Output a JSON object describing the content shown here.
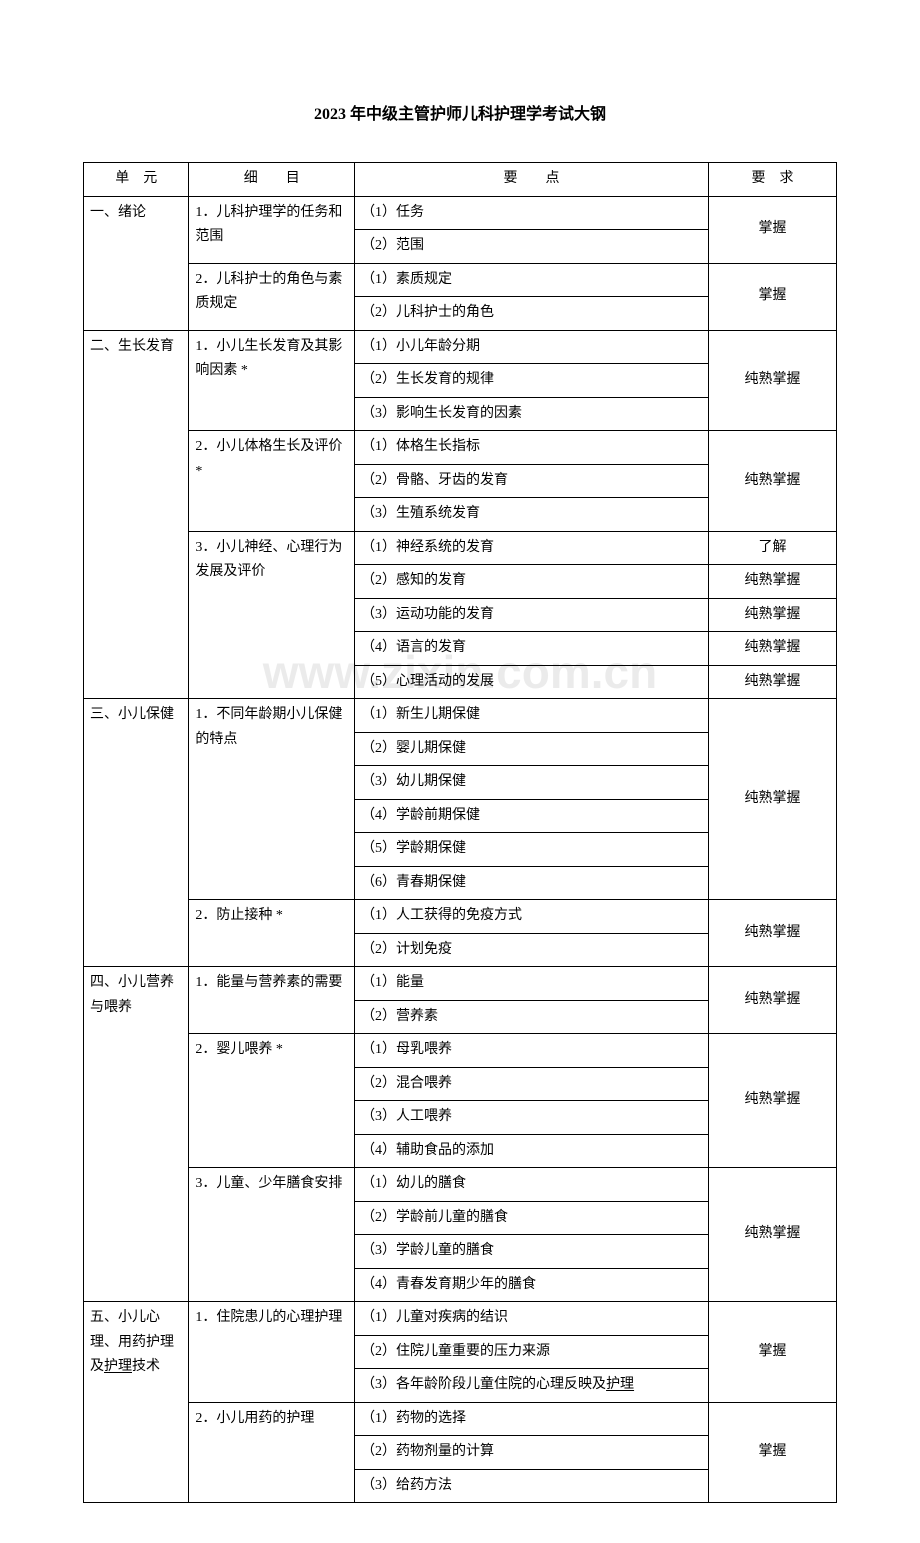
{
  "title": "2023 年中级主管护师儿科护理学考试大钢",
  "watermark": "www.zixin.com.cn",
  "headers": {
    "unit": "单　元",
    "detail": "细　　目",
    "point": "要　　点",
    "req": "要　求"
  },
  "rows": [
    {
      "unit": "一、绪论",
      "detail": "1．儿科护理学的任务和范围",
      "points": [
        "（1）任务",
        "（2）范围"
      ],
      "req": "掌握",
      "unitRowspan": 2
    },
    {
      "detail": "2．儿科护士的角色与素质规定",
      "points": [
        "（1）素质规定",
        "（2）儿科护士的角色"
      ],
      "req": "掌握"
    },
    {
      "unit": "二、生长发育",
      "detail": "1．小儿生长发育及其影响因素 *",
      "points": [
        "（1）小儿年龄分期",
        "（2）生长发育的规律",
        "（3）影响生长发育的因素"
      ],
      "req": "纯熟掌握",
      "unitRowspan": 3
    },
    {
      "detail": "2．小儿体格生长及评价 *",
      "points": [
        "（1）体格生长指标",
        "（2）骨骼、牙齿的发育",
        "（3）生殖系统发育"
      ],
      "req": "纯熟掌握"
    },
    {
      "detail": "3．小儿神经、心理行为发展及评价",
      "points": [
        "（1）神经系统的发育",
        "（2）感知的发育",
        "（3）运动功能的发育",
        "（4）语言的发育",
        "（5）心理活动的发展"
      ],
      "reqs": [
        "了解",
        "纯熟掌握",
        "纯熟掌握",
        "纯熟掌握",
        "纯熟掌握"
      ]
    },
    {
      "unit": "三、小儿保健",
      "detail": "1．不同年龄期小儿保健的特点",
      "points": [
        "（1）新生儿期保健",
        "（2）婴儿期保健",
        "（3）幼儿期保健",
        "（4）学龄前期保健",
        "（5）学龄期保健",
        "（6）青春期保健"
      ],
      "req": "纯熟掌握",
      "unitRowspan": 2
    },
    {
      "detail": "2．防止接种 *",
      "points": [
        "（1）人工获得的免疫方式",
        "（2）计划免疫"
      ],
      "req": "纯熟掌握"
    },
    {
      "unit": "四、小儿营养与喂养",
      "detail": "1．能量与营养素的需要",
      "points": [
        "（1）能量",
        "（2）营养素"
      ],
      "req": "纯熟掌握",
      "unitRowspan": 3
    },
    {
      "detail": "2．婴儿喂养 *",
      "points": [
        "（1）母乳喂养",
        "（2）混合喂养",
        "（3）人工喂养",
        "（4）辅助食品的添加"
      ],
      "req": "纯熟掌握"
    },
    {
      "detail": "3．儿童、少年膳食安排",
      "points": [
        "（1）幼儿的膳食",
        "（2）学龄前儿童的膳食",
        "（3）学龄儿童的膳食",
        "（4）青春发育期少年的膳食"
      ],
      "req": "纯熟掌握"
    },
    {
      "unit": "五、小儿心理、用药护理及<u>护理</u>技术",
      "detail": "1．住院患儿的心理护理",
      "points": [
        "（1）儿童对疾病的结识",
        "（2）住院儿童重要的压力来源",
        "（3）各年龄阶段儿童住院的心理反映及<u>护理</u>"
      ],
      "req": "掌握",
      "unitRowspan": 2
    },
    {
      "detail": "2．小儿用药的护理",
      "points": [
        "（1）药物的选择",
        "（2）药物剂量的计算",
        "（3）给药方法"
      ],
      "req": "掌握"
    }
  ]
}
